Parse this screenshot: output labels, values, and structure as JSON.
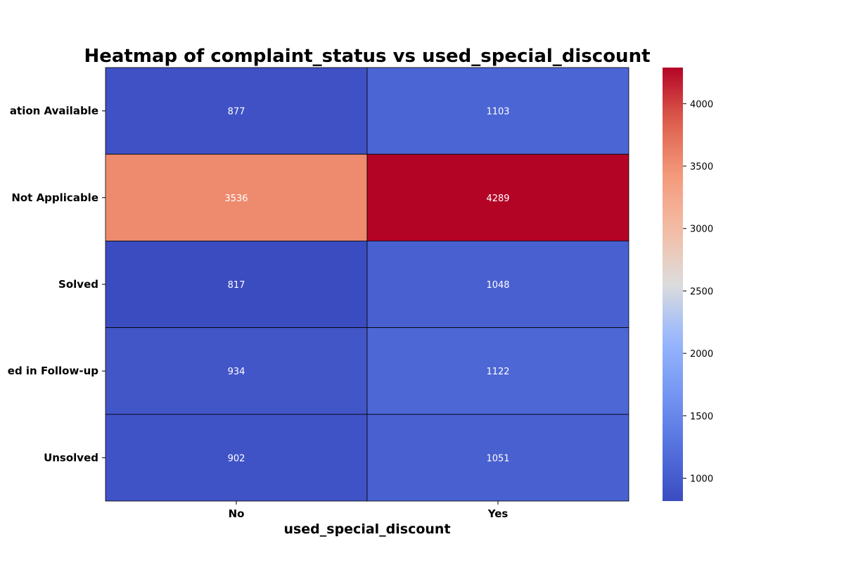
{
  "chart_data": {
    "type": "heatmap",
    "title": "Heatmap of complaint_status vs used_special_discount",
    "xlabel": "used_special_discount",
    "ylabel": "",
    "x_categories": [
      "No",
      "Yes"
    ],
    "y_categories": [
      "No Information Available",
      "Not Applicable",
      "Solved",
      "Solved in Follow-up",
      "Unsolved"
    ],
    "y_tick_labels_visible": [
      "ation Available",
      "Not Applicable",
      "Solved",
      "ed in Follow-up",
      "Unsolved"
    ],
    "values": [
      [
        877,
        1103
      ],
      [
        3536,
        4289
      ],
      [
        817,
        1048
      ],
      [
        934,
        1122
      ],
      [
        902,
        1051
      ]
    ],
    "colormap": "coolwarm",
    "colorbar": {
      "vmin": 817,
      "vmax": 4289,
      "ticks": [
        1000,
        1500,
        2000,
        2500,
        3000,
        3500,
        4000
      ]
    },
    "grid_line_color": "#000000"
  }
}
